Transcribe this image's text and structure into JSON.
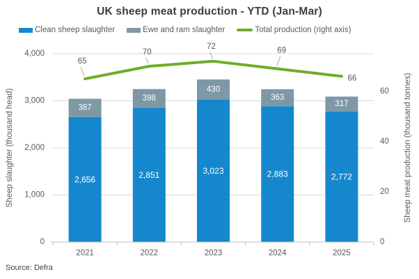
{
  "title": "UK sheep meat production - YTD (Jan-Mar)",
  "source": "Source: Defra",
  "colors": {
    "clean_bar": "#1588cd",
    "ewe_bar": "#7e98a6",
    "total_line": "#6ead2b",
    "title_text": "#3d3d3d",
    "axis_text": "#595959",
    "gridline": "#d9d9d9",
    "axis_line": "#bfbfbf",
    "bar_label": "#ffffff",
    "leader_line": "#a6a6a6"
  },
  "legend": {
    "items": [
      {
        "label": "Clean sheep slaughter",
        "color": "#1588cd",
        "kind": "bar"
      },
      {
        "label": "Ewe and ram slaughter",
        "color": "#7e98a6",
        "kind": "bar"
      },
      {
        "label": "Total production (right axis)",
        "color": "#6ead2b",
        "kind": "line"
      }
    ]
  },
  "chart_data": {
    "type": "bar",
    "subtype": "stacked-bars-with-line-overlay",
    "title": "UK sheep meat production - YTD (Jan-Mar)",
    "categories": [
      "2021",
      "2022",
      "2023",
      "2024",
      "2025"
    ],
    "series": [
      {
        "name": "Clean sheep slaughter",
        "type": "bar",
        "stack": "slaughter",
        "axis": "left",
        "color": "#1588cd",
        "values": [
          2656,
          2851,
          3023,
          2883,
          2772
        ],
        "labels": [
          "2,656",
          "2,851",
          "3,023",
          "2,883",
          "2,772"
        ]
      },
      {
        "name": "Ewe and ram slaughter",
        "type": "bar",
        "stack": "slaughter",
        "axis": "left",
        "color": "#7e98a6",
        "values": [
          387,
          398,
          430,
          363,
          317
        ],
        "labels": [
          "387",
          "398",
          "430",
          "363",
          "317"
        ]
      },
      {
        "name": "Total production (right axis)",
        "type": "line",
        "axis": "right",
        "color": "#6ead2b",
        "values": [
          65,
          70,
          72,
          69,
          66
        ],
        "labels": [
          "65",
          "70",
          "72",
          "69",
          "66"
        ],
        "label_offsets": [
          {
            "dx": -4,
            "dy": -25,
            "leader": true
          },
          {
            "dx": -3,
            "dy": -20,
            "leader": true
          },
          {
            "dx": -3,
            "dy": -21,
            "leader": true
          },
          {
            "dx": 6,
            "dy": -26,
            "leader": true
          },
          {
            "dx": 15,
            "dy": 3,
            "leader": false
          }
        ]
      }
    ],
    "left_axis": {
      "title": "Sheep slaughter (thousand head)",
      "range": [
        0,
        4000
      ],
      "ticks": [
        [
          0,
          "0"
        ],
        [
          1000,
          "1,000"
        ],
        [
          2000,
          "2,000"
        ],
        [
          3000,
          "3,000"
        ],
        [
          4000,
          "4,000"
        ]
      ]
    },
    "right_axis": {
      "title": "Sheep meat production (thousand tonnes)",
      "range": [
        0,
        75
      ],
      "ticks": [
        [
          0,
          "0"
        ],
        [
          20,
          "20"
        ],
        [
          40,
          "40"
        ],
        [
          60,
          "60"
        ]
      ]
    },
    "grid": true,
    "legend_position": "top"
  }
}
